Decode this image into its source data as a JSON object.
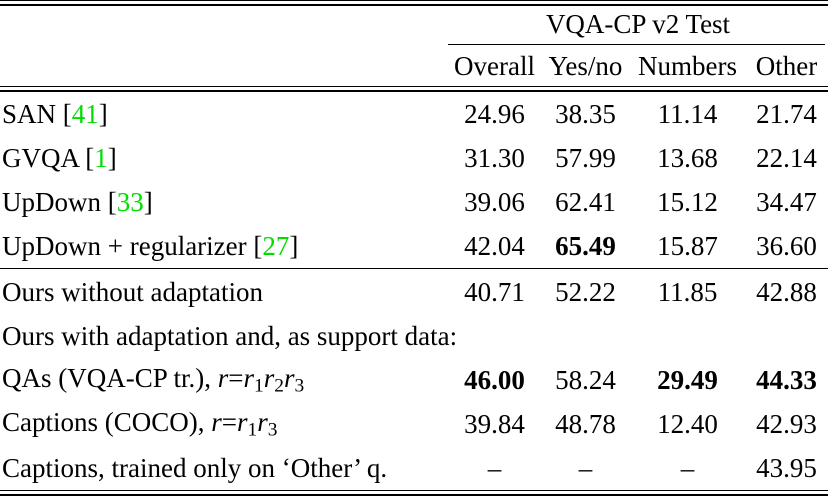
{
  "table": {
    "group_header": "VQA-CP v2 Test",
    "columns": [
      "Overall",
      "Yes/no",
      "Numbers",
      "Other"
    ],
    "citation_color": "#00dd00",
    "rows": [
      {
        "name": "san",
        "segments": [
          {
            "text": "SAN [",
            "style": "plain"
          },
          {
            "text": "41",
            "style": "cite"
          },
          {
            "text": "]",
            "style": "plain"
          }
        ],
        "values": [
          "24.96",
          "38.35",
          "11.14",
          "21.74"
        ],
        "bold": [
          false,
          false,
          false,
          false
        ],
        "rule_after": false
      },
      {
        "name": "gvqa",
        "segments": [
          {
            "text": "GVQA [",
            "style": "plain"
          },
          {
            "text": "1",
            "style": "cite"
          },
          {
            "text": "]",
            "style": "plain"
          }
        ],
        "values": [
          "31.30",
          "57.99",
          "13.68",
          "22.14"
        ],
        "bold": [
          false,
          false,
          false,
          false
        ],
        "rule_after": false
      },
      {
        "name": "updown",
        "segments": [
          {
            "text": "UpDown [",
            "style": "plain"
          },
          {
            "text": "33",
            "style": "cite"
          },
          {
            "text": "]",
            "style": "plain"
          }
        ],
        "values": [
          "39.06",
          "62.41",
          "15.12",
          "34.47"
        ],
        "bold": [
          false,
          false,
          false,
          false
        ],
        "rule_after": false
      },
      {
        "name": "updown-regularizer",
        "segments": [
          {
            "text": "UpDown + regularizer [",
            "style": "plain"
          },
          {
            "text": "27",
            "style": "cite"
          },
          {
            "text": "]",
            "style": "plain"
          }
        ],
        "values": [
          "42.04",
          "65.49",
          "15.87",
          "36.60"
        ],
        "bold": [
          false,
          true,
          false,
          false
        ],
        "rule_after": true
      },
      {
        "name": "ours-without-adaptation",
        "segments": [
          {
            "text": "Ours without adaptation",
            "style": "plain"
          }
        ],
        "values": [
          "40.71",
          "52.22",
          "11.85",
          "42.88"
        ],
        "bold": [
          false,
          false,
          false,
          false
        ],
        "rule_after": false
      },
      {
        "name": "ours-with-adaptation-header",
        "segments": [
          {
            "text": "Ours with adaptation and, as support data:",
            "style": "plain"
          }
        ],
        "values": [
          "",
          "",
          "",
          ""
        ],
        "bold": [
          false,
          false,
          false,
          false
        ],
        "rule_after": false
      },
      {
        "name": "qas-vqa-cp",
        "segments": [
          {
            "text": "QAs (VQA-CP tr.), ",
            "style": "plain"
          },
          {
            "text": "r",
            "style": "math"
          },
          {
            "text": "=",
            "style": "plain"
          },
          {
            "text": "r",
            "style": "math"
          },
          {
            "text": "1",
            "style": "sub"
          },
          {
            "text": "r",
            "style": "math"
          },
          {
            "text": "2",
            "style": "sub"
          },
          {
            "text": "r",
            "style": "math"
          },
          {
            "text": "3",
            "style": "sub"
          }
        ],
        "values": [
          "46.00",
          "58.24",
          "29.49",
          "44.33"
        ],
        "bold": [
          true,
          false,
          true,
          true
        ],
        "rule_after": false
      },
      {
        "name": "captions-coco",
        "segments": [
          {
            "text": "Captions (COCO), ",
            "style": "plain"
          },
          {
            "text": "r",
            "style": "math"
          },
          {
            "text": "=",
            "style": "plain"
          },
          {
            "text": "r",
            "style": "math"
          },
          {
            "text": "1",
            "style": "sub"
          },
          {
            "text": "r",
            "style": "math"
          },
          {
            "text": "3",
            "style": "sub"
          }
        ],
        "values": [
          "39.84",
          "48.78",
          "12.40",
          "42.93"
        ],
        "bold": [
          false,
          false,
          false,
          false
        ],
        "rule_after": false
      },
      {
        "name": "captions-other-only",
        "segments": [
          {
            "text": "Captions, trained only on ‘Other’ q.",
            "style": "plain"
          }
        ],
        "values": [
          "–",
          "–",
          "–",
          "43.95"
        ],
        "bold": [
          false,
          false,
          false,
          false
        ],
        "rule_after": false
      }
    ]
  }
}
